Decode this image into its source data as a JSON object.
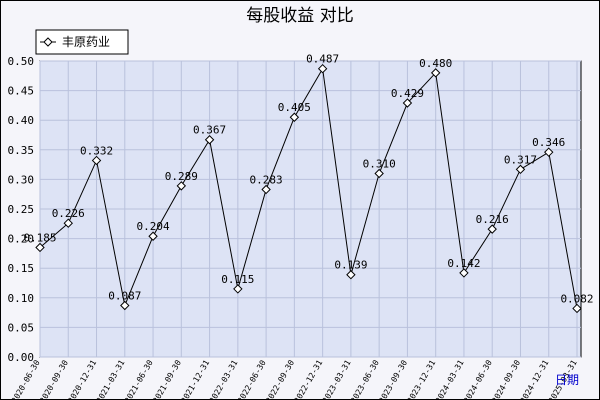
{
  "chart_data": {
    "type": "line",
    "title": "每股收益  对比",
    "categories": [
      "2020-06-30",
      "2020-09-30",
      "2020-12-31",
      "2021-03-31",
      "2021-06-30",
      "2021-09-30",
      "2021-12-31",
      "2022-03-31",
      "2022-06-30",
      "2022-09-30",
      "2022-12-31",
      "2023-03-31",
      "2023-06-30",
      "2023-09-30",
      "2023-12-31",
      "2024-03-31",
      "2024-06-30",
      "2024-09-30",
      "2024-12-31",
      "2025-03-31"
    ],
    "series": [
      {
        "name": "丰原药业",
        "values": [
          0.185,
          0.226,
          0.332,
          0.087,
          0.204,
          0.289,
          0.367,
          0.115,
          0.283,
          0.405,
          0.487,
          0.139,
          0.31,
          0.429,
          0.48,
          0.142,
          0.216,
          0.317,
          0.346,
          0.082
        ]
      }
    ],
    "value_labels": [
      "0.185",
      "0.226",
      "0.332",
      "0.087",
      "0.204",
      "0.289",
      "0.367",
      "0.115",
      "0.283",
      "0.405",
      "0.487",
      "0.139",
      "0.310",
      "0.429",
      "0.480",
      "0.142",
      "0.216",
      "0.317",
      "0.346",
      "0.082"
    ],
    "yticks": [
      "0.00",
      "0.05",
      "0.10",
      "0.15",
      "0.20",
      "0.25",
      "0.30",
      "0.35",
      "0.40",
      "0.45",
      "0.50"
    ],
    "ylim": [
      0,
      0.5
    ],
    "grid": true,
    "legend_position": "top-left",
    "marker": "diamond",
    "colors": {
      "line": "#000000",
      "plot_background": "#dde3f5",
      "grid": "#b9c1dc",
      "frame_background": "#f5f5fa"
    }
  },
  "footer_label": "日期"
}
